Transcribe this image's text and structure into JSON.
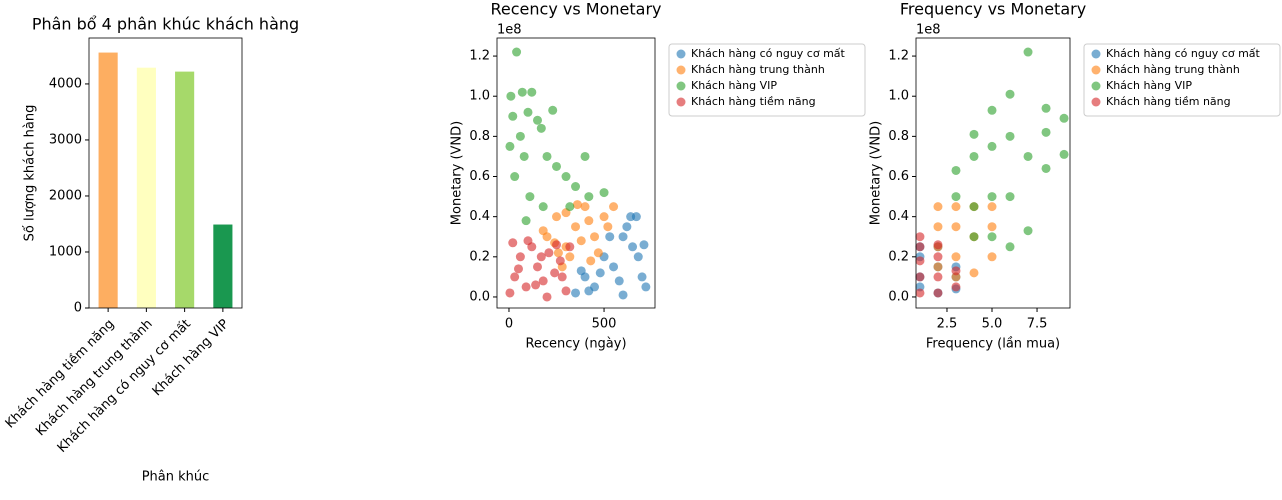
{
  "chart_data": [
    {
      "type": "bar",
      "title": "Phân bổ 4 phân khúc khách hàng",
      "xlabel": "Phân khúc",
      "ylabel": "Số lượng khách hàng",
      "categories": [
        "Khách hàng tiềm năng",
        "Khách hàng trung thành",
        "Khách hàng có nguy cơ mất",
        "Khách hàng VIP"
      ],
      "values": [
        4560,
        4290,
        4220,
        1490
      ],
      "colors": [
        "#fdae61",
        "#ffffbf",
        "#a6d96a",
        "#1a9850"
      ],
      "ylim": [
        0,
        4820
      ],
      "yticks": [
        0,
        1000,
        2000,
        3000,
        4000
      ]
    },
    {
      "type": "scatter",
      "title": "Recency vs Monetary",
      "xlabel": "Recency (ngày)",
      "ylabel": "Monetary (VND)",
      "y_offset_label": "1e8",
      "xlim": [
        -63,
        768
      ],
      "xticks": [
        0,
        500
      ],
      "ylim": [
        -0.055,
        1.29
      ],
      "yticks": [
        {
          "value": 0,
          "label": "0.0"
        },
        0.2,
        0.4,
        0.6,
        0.8,
        {
          "value": 1,
          "label": "1.0"
        },
        1.2
      ],
      "legend": "outside-upper-right",
      "series": [
        {
          "name": "Khách hàng có nguy cơ mất",
          "color": "#1f77b4",
          "x": [
            350,
            400,
            450,
            500,
            550,
            600,
            620,
            650,
            700,
            720,
            680,
            580,
            480,
            420,
            640,
            670,
            710,
            530,
            380,
            600
          ],
          "y": [
            0.02,
            0.1,
            0.05,
            0.2,
            0.15,
            0.3,
            0.35,
            0.25,
            0.1,
            0.05,
            0.2,
            0.08,
            0.12,
            0.03,
            0.4,
            0.4,
            0.26,
            0.3,
            0.13,
            0.01
          ]
        },
        {
          "name": "Khách hàng trung thành",
          "color": "#ff7f0e",
          "x": [
            200,
            250,
            300,
            350,
            400,
            450,
            500,
            550,
            280,
            320,
            380,
            420,
            470,
            240,
            180,
            520,
            360,
            300,
            430,
            260
          ],
          "y": [
            0.3,
            0.4,
            0.25,
            0.35,
            0.45,
            0.3,
            0.4,
            0.45,
            0.15,
            0.2,
            0.28,
            0.38,
            0.22,
            0.27,
            0.33,
            0.35,
            0.46,
            0.42,
            0.18,
            0.22
          ]
        },
        {
          "name": "Khách hàng VIP",
          "color": "#2ca02c",
          "x": [
            40,
            10,
            70,
            120,
            20,
            60,
            100,
            150,
            170,
            80,
            200,
            250,
            300,
            350,
            420,
            500,
            30,
            110,
            180,
            90,
            400,
            320,
            230,
            5
          ],
          "y": [
            1.22,
            1.0,
            1.02,
            1.02,
            0.9,
            0.8,
            0.92,
            0.88,
            0.84,
            0.7,
            0.7,
            0.65,
            0.6,
            0.55,
            0.5,
            0.52,
            0.6,
            0.5,
            0.45,
            0.38,
            0.7,
            0.45,
            0.93,
            0.75
          ]
        },
        {
          "name": "Khách hàng tiềm năng",
          "color": "#d62728",
          "x": [
            5,
            30,
            60,
            90,
            120,
            150,
            180,
            210,
            240,
            270,
            300,
            320,
            20,
            100,
            200,
            250,
            50,
            140,
            280,
            170
          ],
          "y": [
            0.02,
            0.1,
            0.2,
            0.05,
            0.25,
            0.15,
            0.08,
            0.22,
            0.12,
            0.18,
            0.03,
            0.25,
            0.27,
            0.28,
            0.0,
            0.26,
            0.14,
            0.06,
            0.1,
            0.2
          ]
        }
      ]
    },
    {
      "type": "scatter",
      "title": "Frequency vs Monetary",
      "xlabel": "Frequency (lần mua)",
      "ylabel": "Monetary (VND)",
      "y_offset_label": "1e8",
      "xlim": [
        0.78,
        9.33
      ],
      "xticks": [
        2.5,
        {
          "value": 5,
          "label": "5.0"
        },
        7.5
      ],
      "ylim": [
        -0.055,
        1.29
      ],
      "yticks": [
        {
          "value": 0,
          "label": "0.0"
        },
        0.2,
        0.4,
        0.6,
        0.8,
        {
          "value": 1,
          "label": "1.0"
        },
        1.2
      ],
      "legend": "outside-upper-right",
      "series": [
        {
          "name": "Khách hàng có nguy cơ mất",
          "color": "#1f77b4",
          "x": [
            1,
            1,
            1,
            1,
            2,
            2,
            2,
            3,
            3,
            3
          ],
          "y": [
            0.05,
            0.1,
            0.2,
            0.25,
            0.02,
            0.15,
            0.25,
            0.04,
            0.1,
            0.15
          ]
        },
        {
          "name": "Khách hàng trung thành",
          "color": "#ff7f0e",
          "x": [
            2,
            2,
            2,
            2,
            3,
            3,
            3,
            3,
            4,
            4,
            4,
            5,
            5,
            5
          ],
          "y": [
            0.15,
            0.25,
            0.35,
            0.45,
            0.1,
            0.2,
            0.35,
            0.45,
            0.12,
            0.3,
            0.45,
            0.2,
            0.35,
            0.45
          ]
        },
        {
          "name": "Khách hàng VIP",
          "color": "#2ca02c",
          "x": [
            3,
            3,
            4,
            4,
            4,
            4,
            5,
            5,
            5,
            5,
            6,
            6,
            6,
            6,
            7,
            7,
            7,
            8,
            8,
            8,
            9,
            9
          ],
          "y": [
            0.5,
            0.63,
            0.3,
            0.45,
            0.7,
            0.81,
            0.3,
            0.5,
            0.75,
            0.93,
            0.25,
            0.5,
            0.8,
            1.01,
            0.33,
            0.7,
            1.22,
            0.64,
            0.82,
            0.94,
            0.71,
            0.89
          ]
        },
        {
          "name": "Khách hàng tiềm năng",
          "color": "#d62728",
          "x": [
            1,
            1,
            1,
            1,
            1,
            2,
            2,
            2,
            2,
            3,
            3
          ],
          "y": [
            0.02,
            0.1,
            0.18,
            0.25,
            0.3,
            0.02,
            0.1,
            0.2,
            0.26,
            0.05,
            0.13
          ]
        }
      ]
    }
  ]
}
